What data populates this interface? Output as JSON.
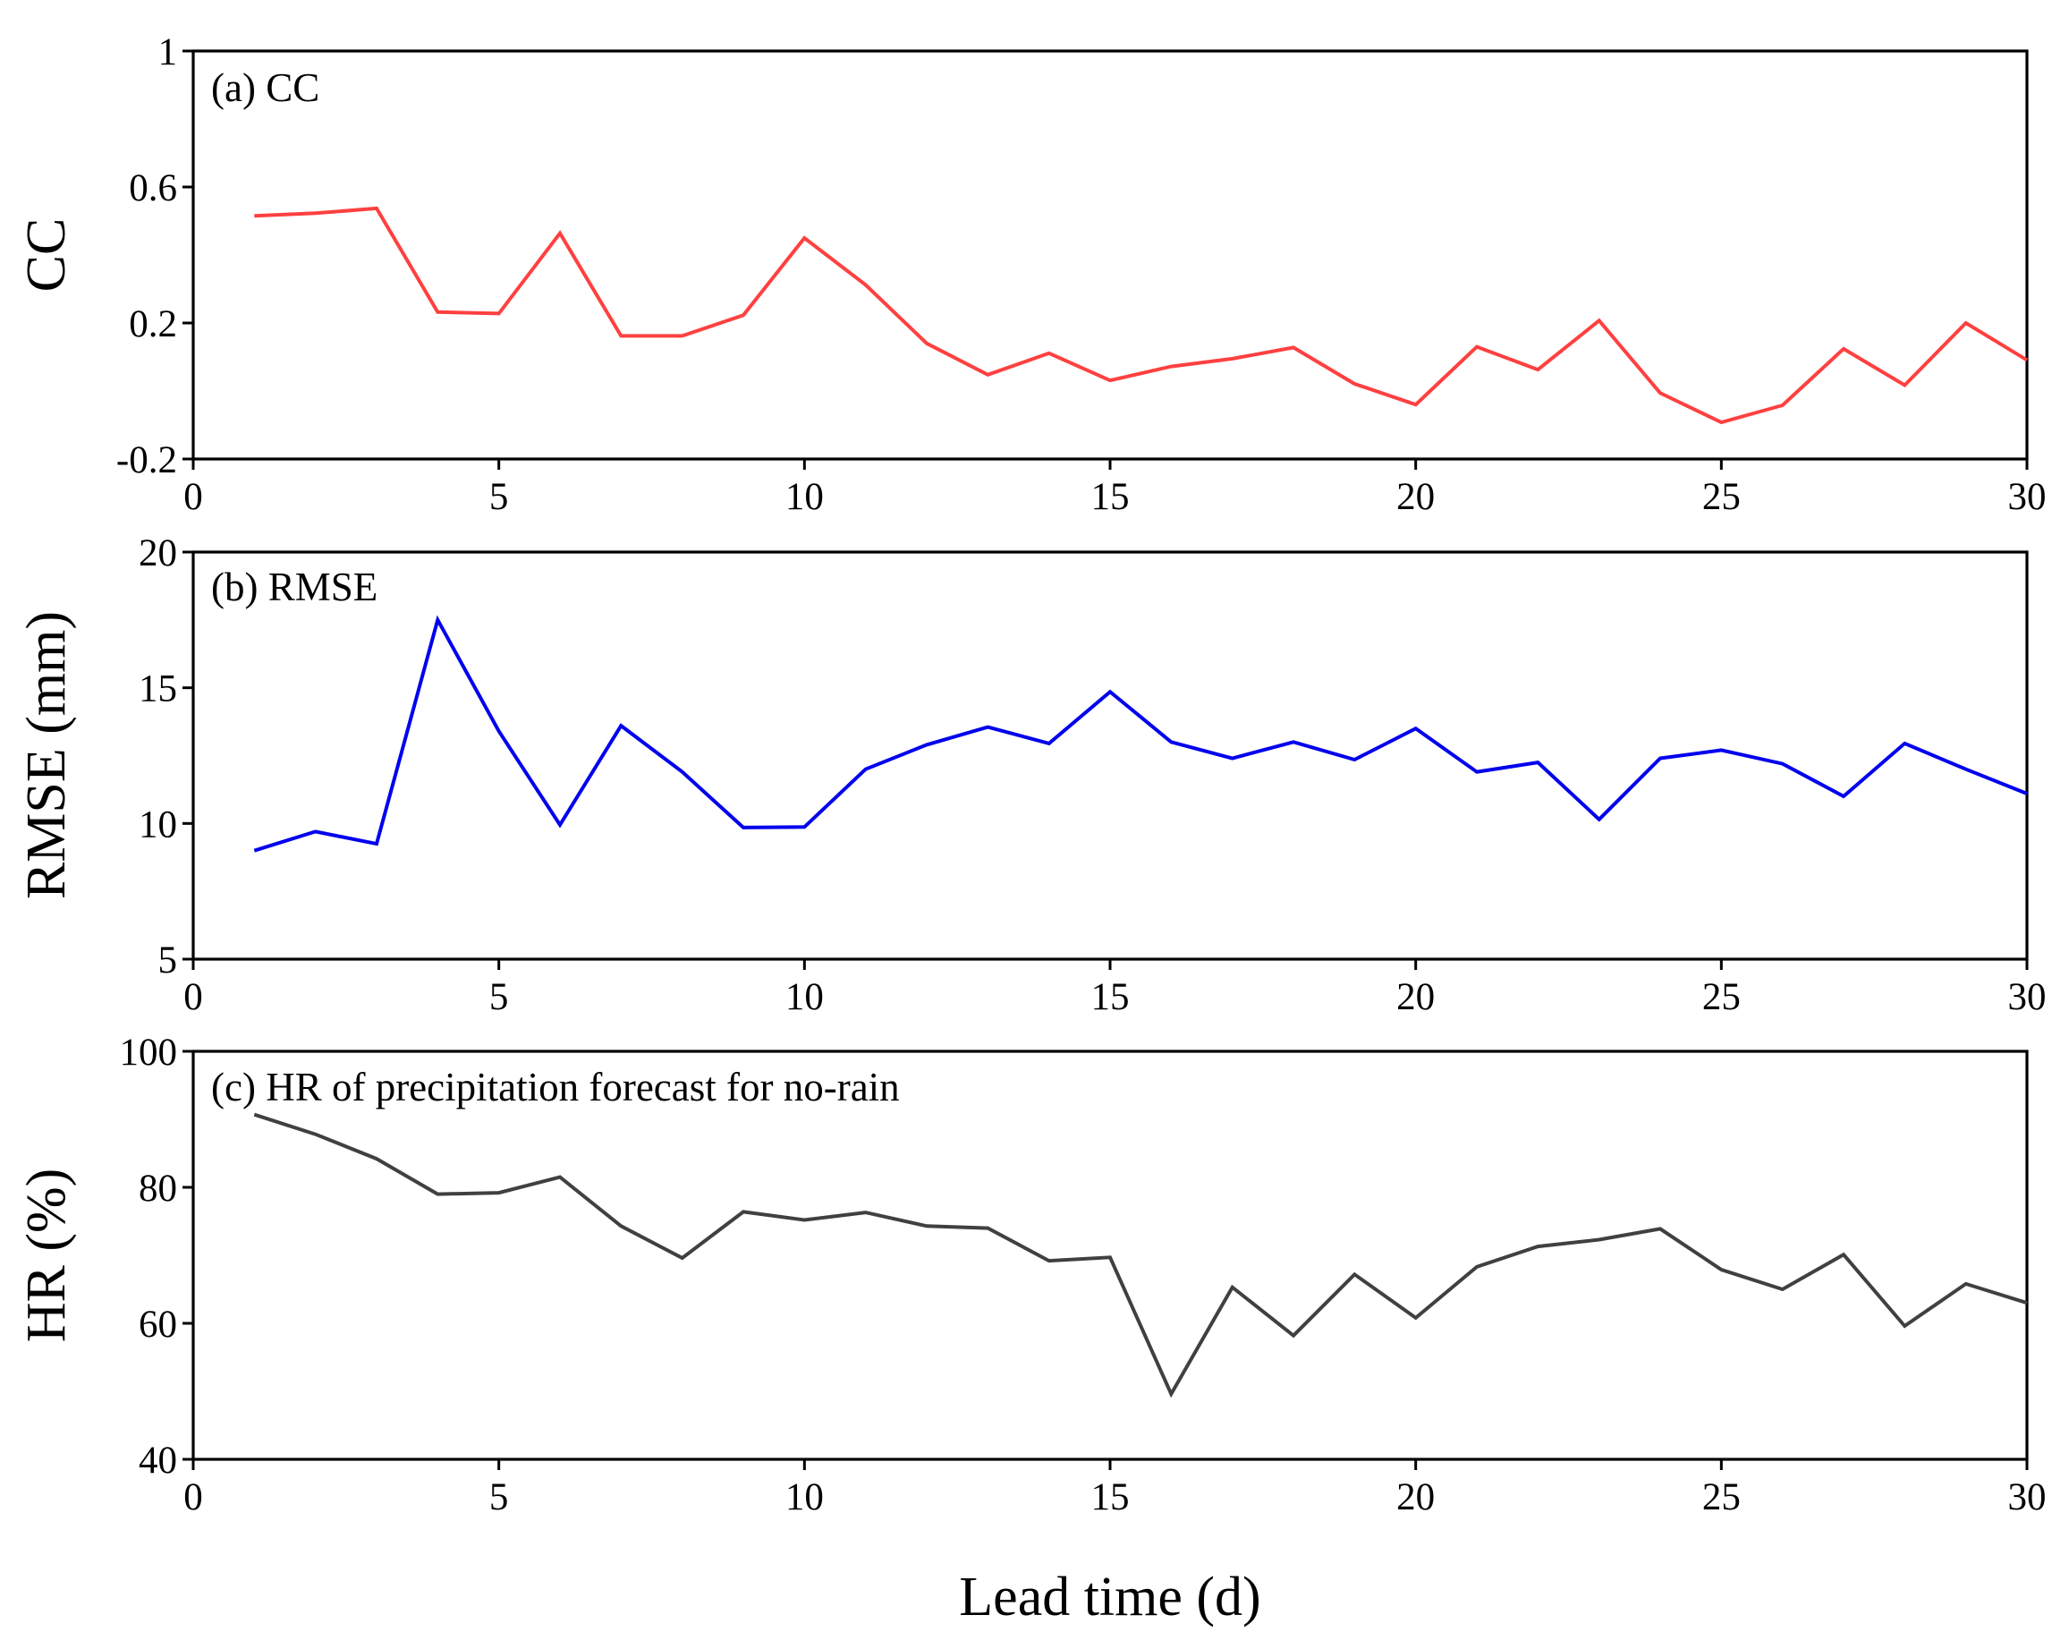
{
  "figure": {
    "xlabel": "Lead time (d)"
  },
  "chart_data": [
    {
      "type": "line",
      "panel_label": "(a) CC",
      "ylabel": "CC",
      "xlim": [
        0,
        30
      ],
      "ylim": [
        -0.2,
        1
      ],
      "xticks": [
        0,
        5,
        10,
        15,
        20,
        25,
        30
      ],
      "yticks": [
        -0.2,
        0.2,
        0.6,
        1
      ],
      "ytick_labels": [
        "-0.2",
        "0.2",
        "0.6",
        "1"
      ],
      "series": [
        {
          "name": "CC",
          "color": "#ff4040",
          "x": [
            1,
            2,
            3,
            4,
            5,
            6,
            7,
            8,
            9,
            10,
            11,
            12,
            13,
            14,
            15,
            16,
            17,
            18,
            19,
            20,
            21,
            22,
            23,
            24,
            25,
            26,
            27,
            28,
            29,
            30
          ],
          "y": [
            0.515,
            0.523,
            0.537,
            0.232,
            0.228,
            0.464,
            0.162,
            0.162,
            0.223,
            0.45,
            0.312,
            0.14,
            0.048,
            0.111,
            0.031,
            0.072,
            0.095,
            0.128,
            0.021,
            -0.04,
            0.13,
            0.063,
            0.207,
            -0.006,
            -0.092,
            -0.042,
            0.124,
            0.017,
            0.2,
            0.091
          ]
        }
      ]
    },
    {
      "type": "line",
      "panel_label": "(b) RMSE",
      "ylabel": "RMSE (mm)",
      "xlim": [
        0,
        30
      ],
      "ylim": [
        5,
        20
      ],
      "xticks": [
        0,
        5,
        10,
        15,
        20,
        25,
        30
      ],
      "yticks": [
        5,
        10,
        15,
        20
      ],
      "ytick_labels": [
        "5",
        "10",
        "15",
        "20"
      ],
      "series": [
        {
          "name": "RMSE",
          "color": "#0000ee",
          "x": [
            1,
            2,
            3,
            4,
            5,
            6,
            7,
            8,
            9,
            10,
            11,
            12,
            13,
            14,
            15,
            16,
            17,
            18,
            19,
            20,
            21,
            22,
            23,
            24,
            25,
            26,
            27,
            28,
            29,
            30
          ],
          "y": [
            9.0,
            9.7,
            9.25,
            17.5,
            13.4,
            9.95,
            13.6,
            11.9,
            9.85,
            9.87,
            12.0,
            12.9,
            13.55,
            12.95,
            14.85,
            13.0,
            12.4,
            13.0,
            12.35,
            13.5,
            11.9,
            12.25,
            10.15,
            12.4,
            12.7,
            12.2,
            11.0,
            12.95,
            12.0,
            11.1
          ]
        }
      ]
    },
    {
      "type": "line",
      "panel_label": "(c) HR of precipitation forecast for no-rain",
      "ylabel": "HR (%)",
      "xlim": [
        0,
        30
      ],
      "ylim": [
        40,
        100
      ],
      "xticks": [
        0,
        5,
        10,
        15,
        20,
        25,
        30
      ],
      "yticks": [
        40,
        60,
        80,
        100
      ],
      "ytick_labels": [
        "40",
        "60",
        "80",
        "100"
      ],
      "series": [
        {
          "name": "HR",
          "color": "#404040",
          "x": [
            1,
            2,
            3,
            4,
            5,
            6,
            7,
            8,
            9,
            10,
            11,
            12,
            13,
            14,
            15,
            16,
            17,
            18,
            19,
            20,
            21,
            22,
            23,
            24,
            25,
            26,
            27,
            28,
            29,
            30
          ],
          "y": [
            90.7,
            87.8,
            84.2,
            79.0,
            79.2,
            81.5,
            74.3,
            69.6,
            76.4,
            75.2,
            76.3,
            74.3,
            74.0,
            69.2,
            69.7,
            49.6,
            65.3,
            58.2,
            67.2,
            60.8,
            68.3,
            71.3,
            72.3,
            73.9,
            67.9,
            65.0,
            70.1,
            59.6,
            65.8,
            63.0
          ]
        }
      ]
    }
  ]
}
